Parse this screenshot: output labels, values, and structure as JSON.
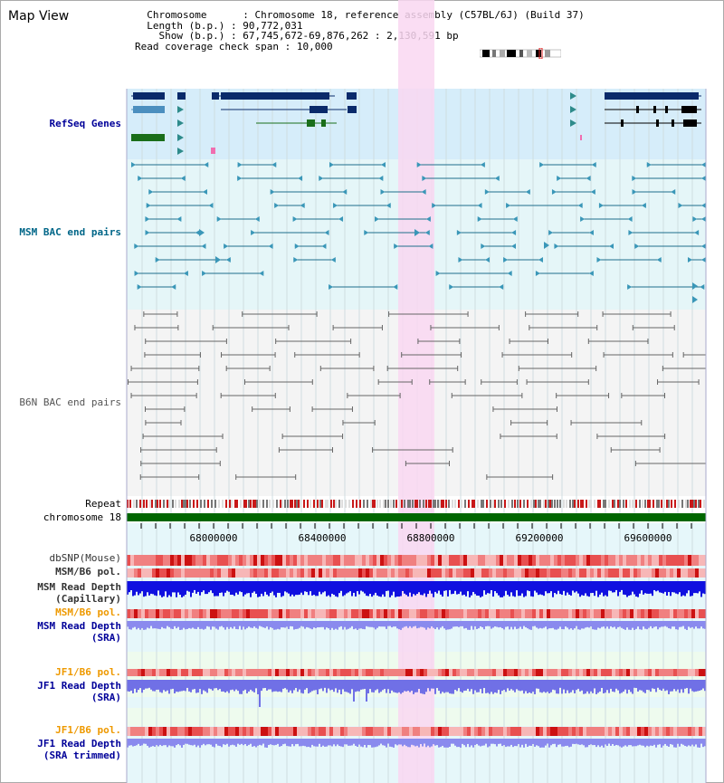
{
  "app": {
    "title": "Map View"
  },
  "info": {
    "chromosome_key": "Chromosome",
    "chromosome_value": "Chromosome 18, reference assembly (C57BL/6J) (Build 37)",
    "length_key": "Length (b.p.)",
    "length_value": "90,772,031",
    "show_key": "Show (b.p.)",
    "show_value": "67,745,672-69,876,262 : 2,130,591 bp",
    "span_key": "Read coverage check span",
    "span_value": "10,000"
  },
  "tracks": {
    "refseq": "RefSeq Genes",
    "msm_bac": "MSM BAC end pairs",
    "b6n_bac": "B6N BAC end pairs",
    "repeat": "Repeat",
    "chromosome": "chromosome 18",
    "dbsnp": "dbSNP(Mouse)",
    "msm_b6_pol": "MSM/B6 pol.",
    "msm_read_depth_cap_1": "MSM Read Depth",
    "msm_read_depth_cap_2": "(Capillary)",
    "msm_b6_pol_2": "MSM/B6 pol.",
    "msm_read_depth_sra_1": "MSM Read Depth",
    "msm_read_depth_sra_2": "(SRA)",
    "jf1_b6_pol": "JF1/B6 pol.",
    "jf1_read_depth_sra_1": "JF1 Read Depth",
    "jf1_read_depth_sra_2": "(SRA)",
    "jf1_b6_pol_2": "JF1/B6 pol.",
    "jf1_read_depth_trim_1": "JF1 Read Depth",
    "jf1_read_depth_trim_2": "(SRA trimmed)"
  },
  "ruler": {
    "ticks": [
      "68000000",
      "68400000",
      "68800000",
      "69200000",
      "69600000"
    ]
  },
  "colors": {
    "label_blue": "#000099",
    "label_teal": "#006688",
    "label_gray": "#555555",
    "label_orange": "#ee9900",
    "highlight": "#f9d7f1",
    "refseq_bg": "#d6edfa",
    "msm_bg": "#e5f6f8",
    "b6n_bg": "#f4f4f4",
    "chromosome_bar": "#006600"
  }
}
